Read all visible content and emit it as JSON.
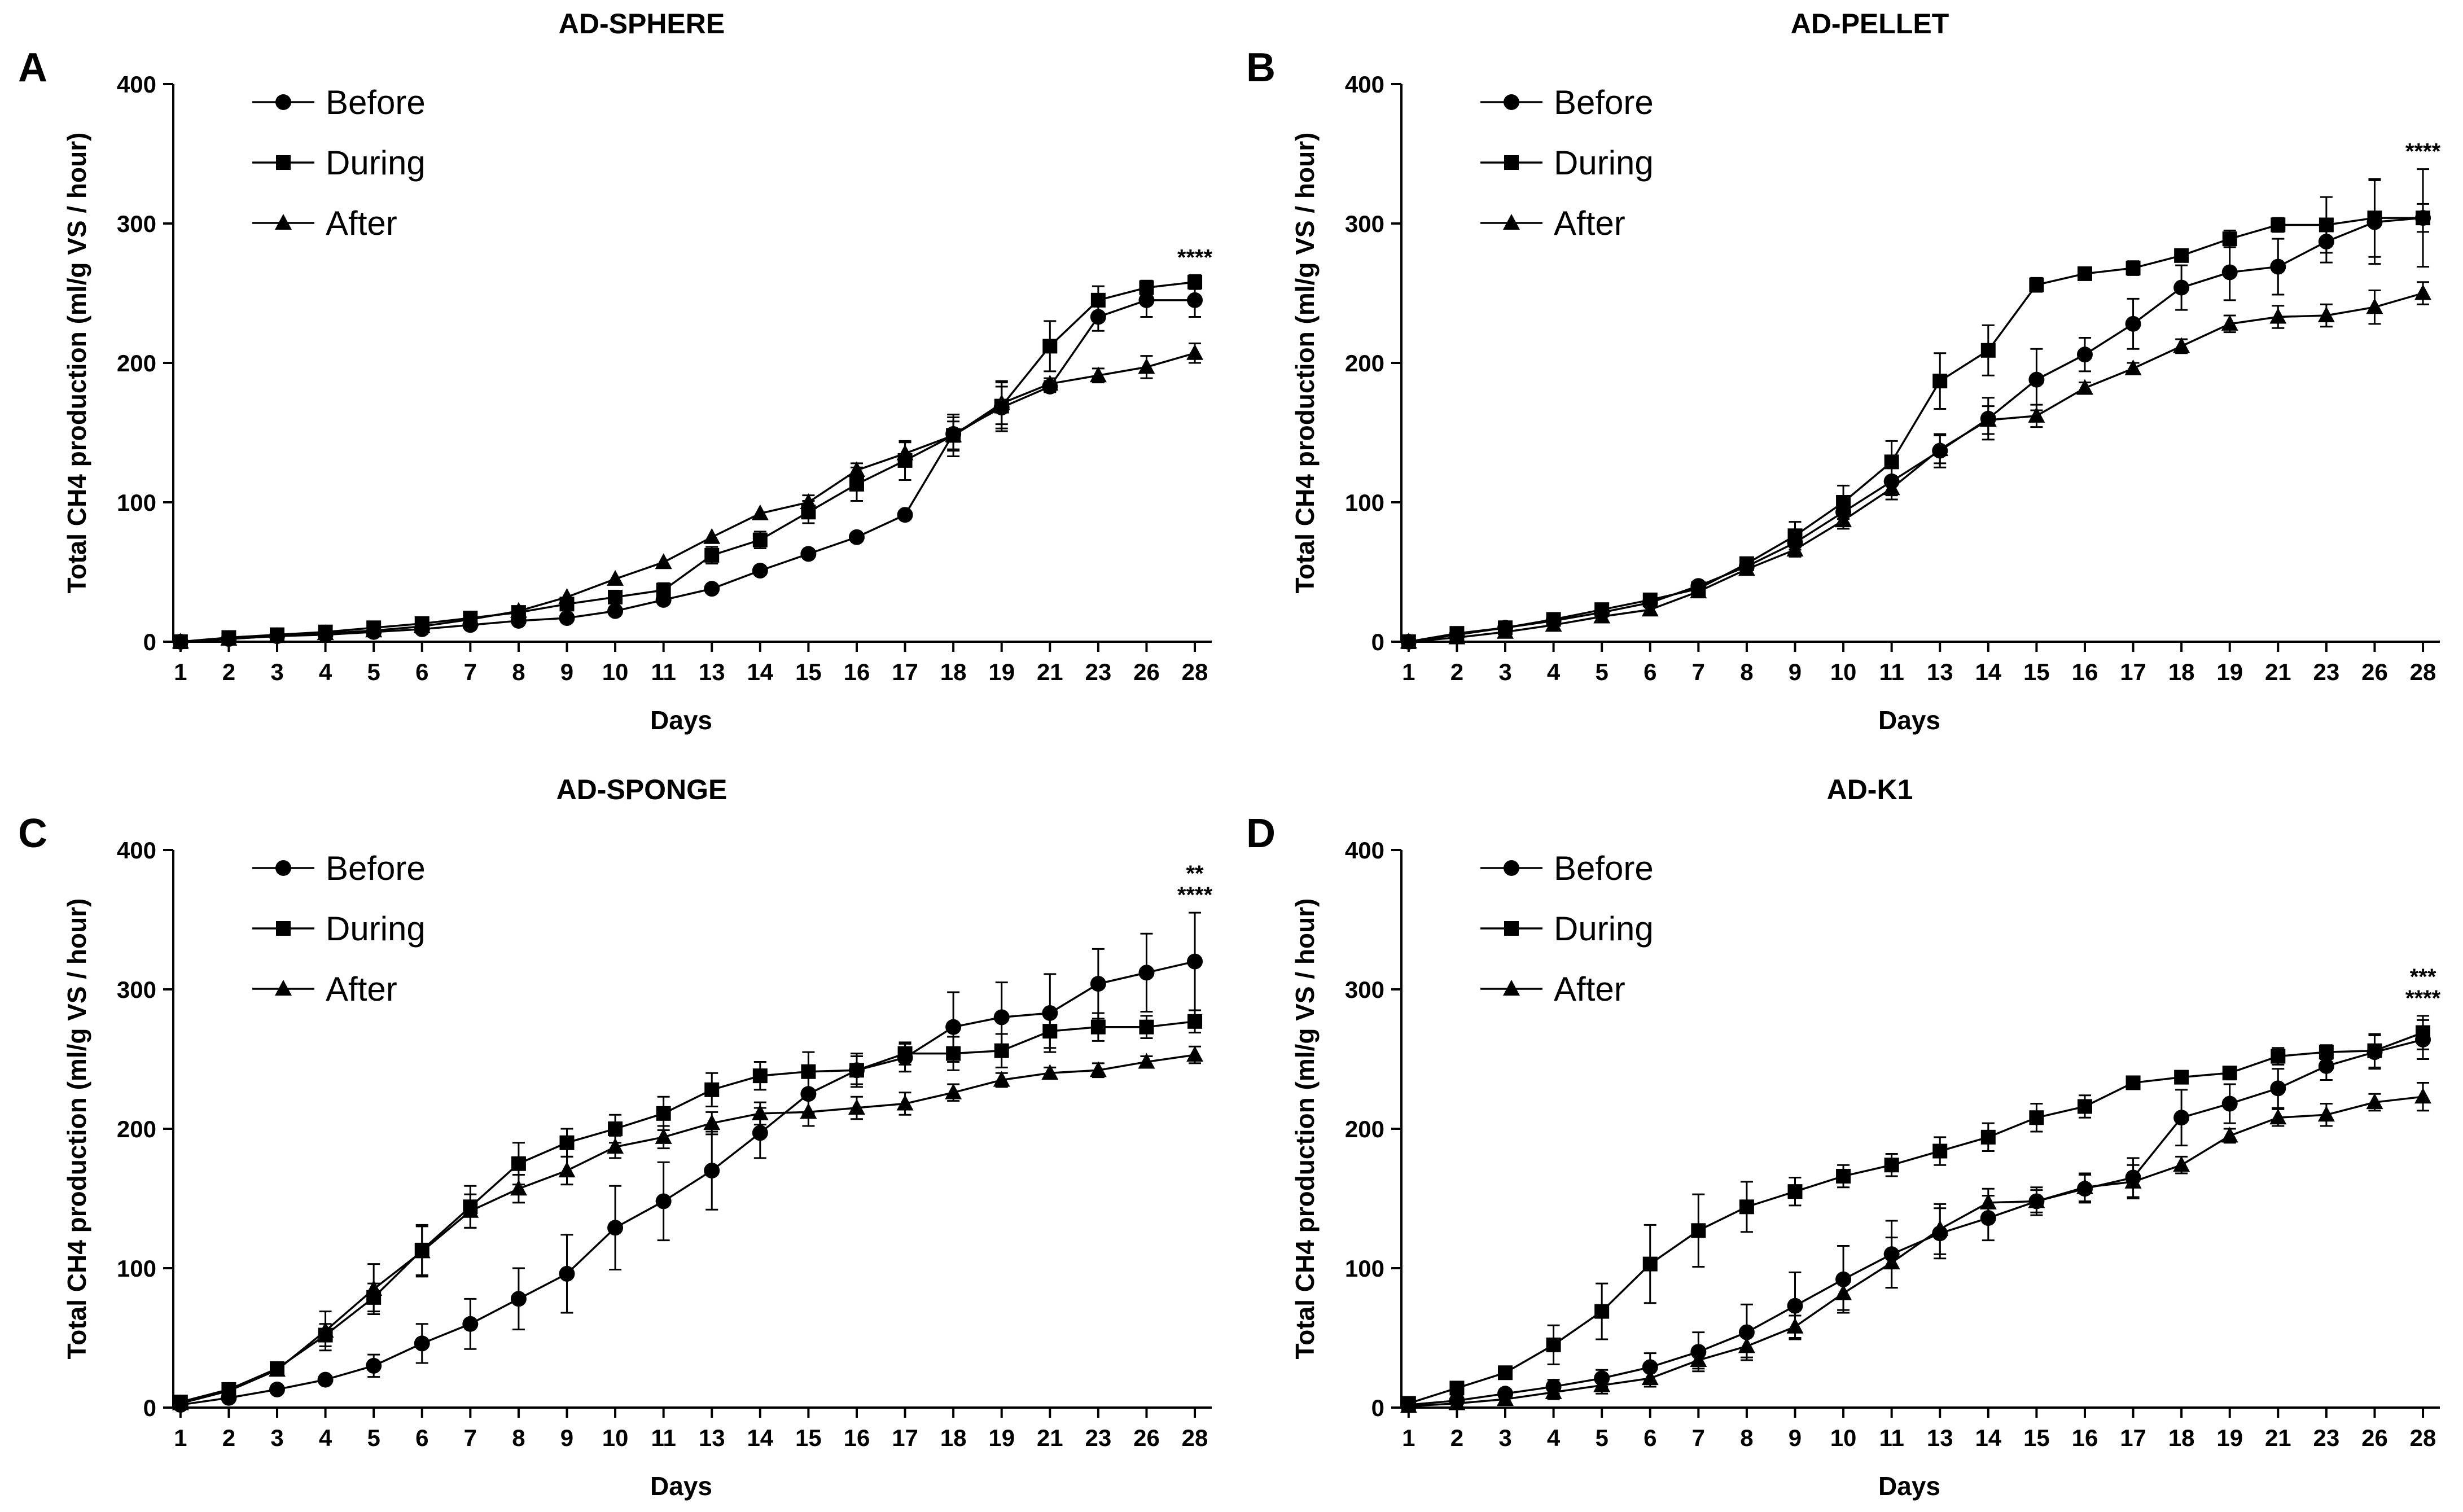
{
  "chart_data": [
    {
      "type": "line",
      "panel": "A",
      "title": "AD-SPHERE",
      "xlabel": "Days",
      "ylabel": "Total CH4 production (ml/g VS / hour)",
      "categories": [
        "1",
        "2",
        "3",
        "4",
        "5",
        "6",
        "7",
        "8",
        "9",
        "10",
        "11",
        "13",
        "14",
        "15",
        "16",
        "17",
        "18",
        "19",
        "21",
        "23",
        "26",
        "28"
      ],
      "ylim": [
        0,
        400
      ],
      "yticks": [
        0,
        100,
        200,
        300,
        400
      ],
      "legend_position": "top-left",
      "series": [
        {
          "name": "Before",
          "marker": "circle",
          "values": [
            0,
            2,
            4,
            5,
            7,
            9,
            12,
            15,
            17,
            22,
            30,
            38,
            51,
            63,
            75,
            91,
            149,
            168,
            183,
            233,
            245,
            245
          ],
          "errors": [
            0,
            0,
            0,
            0,
            0,
            0,
            0,
            0,
            0,
            0,
            0,
            0,
            0,
            0,
            0,
            0,
            12,
            15,
            4,
            10,
            12,
            12
          ]
        },
        {
          "name": "During",
          "marker": "square",
          "values": [
            0,
            3,
            5,
            7,
            10,
            13,
            17,
            21,
            27,
            32,
            37,
            62,
            73,
            93,
            113,
            130,
            148,
            169,
            212,
            245,
            254,
            258
          ],
          "errors": [
            0,
            0,
            0,
            0,
            0,
            0,
            0,
            0,
            0,
            0,
            5,
            6,
            6,
            8,
            12,
            14,
            15,
            18,
            18,
            10,
            5,
            5
          ]
        },
        {
          "name": "After",
          "marker": "triangle",
          "values": [
            0,
            2,
            4,
            6,
            8,
            11,
            16,
            22,
            32,
            45,
            57,
            75,
            92,
            100,
            123,
            135,
            148,
            171,
            185,
            191,
            197,
            207
          ],
          "errors": [
            0,
            0,
            0,
            0,
            0,
            0,
            0,
            0,
            0,
            0,
            0,
            0,
            0,
            5,
            5,
            8,
            10,
            15,
            4,
            5,
            8,
            7
          ]
        }
      ],
      "significance": [
        "****"
      ]
    },
    {
      "type": "line",
      "panel": "B",
      "title": "AD-PELLET",
      "xlabel": "Days",
      "ylabel": "Total CH4 production (ml/g VS / hour)",
      "categories": [
        "1",
        "2",
        "3",
        "4",
        "5",
        "6",
        "7",
        "8",
        "9",
        "10",
        "11",
        "13",
        "14",
        "15",
        "16",
        "17",
        "18",
        "19",
        "21",
        "23",
        "26",
        "28"
      ],
      "ylim": [
        0,
        400
      ],
      "yticks": [
        0,
        100,
        200,
        300,
        400
      ],
      "legend_position": "top-left",
      "series": [
        {
          "name": "Before",
          "marker": "circle",
          "values": [
            0,
            5,
            10,
            15,
            21,
            28,
            40,
            54,
            71,
            93,
            115,
            137,
            160,
            188,
            206,
            228,
            254,
            265,
            269,
            287,
            301,
            304
          ],
          "errors": [
            0,
            0,
            0,
            0,
            0,
            0,
            0,
            0,
            0,
            8,
            10,
            12,
            15,
            22,
            12,
            18,
            16,
            20,
            20,
            15,
            30,
            35
          ]
        },
        {
          "name": "During",
          "marker": "square",
          "values": [
            0,
            6,
            10,
            16,
            23,
            30,
            38,
            56,
            76,
            100,
            129,
            187,
            209,
            256,
            264,
            268,
            277,
            289,
            299,
            299,
            304,
            304
          ],
          "errors": [
            0,
            0,
            0,
            0,
            0,
            0,
            0,
            0,
            10,
            12,
            15,
            20,
            18,
            5,
            4,
            5,
            4,
            6,
            5,
            20,
            28,
            10
          ]
        },
        {
          "name": "After",
          "marker": "triangle",
          "values": [
            0,
            3,
            7,
            12,
            18,
            23,
            36,
            52,
            66,
            87,
            110,
            138,
            159,
            162,
            182,
            196,
            212,
            228,
            233,
            234,
            240,
            250
          ],
          "errors": [
            0,
            0,
            0,
            0,
            0,
            0,
            0,
            0,
            5,
            6,
            8,
            10,
            10,
            8,
            4,
            4,
            5,
            6,
            8,
            8,
            12,
            8
          ]
        }
      ],
      "significance": [
        "****"
      ]
    },
    {
      "type": "line",
      "panel": "C",
      "title": "AD-SPONGE",
      "xlabel": "Days",
      "ylabel": "Total CH4 production (ml/g VS / hour)",
      "categories": [
        "1",
        "2",
        "3",
        "4",
        "5",
        "6",
        "7",
        "8",
        "9",
        "10",
        "11",
        "13",
        "14",
        "15",
        "16",
        "17",
        "18",
        "19",
        "21",
        "23",
        "26",
        "28"
      ],
      "ylim": [
        0,
        400
      ],
      "yticks": [
        0,
        100,
        200,
        300,
        400
      ],
      "legend_position": "top-left",
      "series": [
        {
          "name": "Before",
          "marker": "circle",
          "values": [
            2,
            7,
            13,
            20,
            30,
            46,
            60,
            78,
            96,
            129,
            148,
            170,
            197,
            225,
            242,
            251,
            273,
            280,
            283,
            304,
            312,
            320
          ],
          "errors": [
            0,
            0,
            0,
            0,
            8,
            14,
            18,
            22,
            28,
            30,
            28,
            28,
            18,
            14,
            10,
            10,
            25,
            25,
            28,
            25,
            28,
            35
          ]
        },
        {
          "name": "During",
          "marker": "square",
          "values": [
            4,
            13,
            28,
            52,
            79,
            113,
            144,
            175,
            190,
            200,
            211,
            228,
            238,
            241,
            242,
            254,
            254,
            256,
            270,
            273,
            273,
            277
          ],
          "errors": [
            0,
            0,
            4,
            8,
            10,
            18,
            15,
            15,
            10,
            10,
            12,
            12,
            10,
            14,
            12,
            8,
            12,
            12,
            12,
            10,
            8,
            8
          ]
        },
        {
          "name": "After",
          "marker": "triangle",
          "values": [
            3,
            12,
            27,
            55,
            85,
            112,
            141,
            157,
            170,
            187,
            194,
            204,
            211,
            212,
            215,
            218,
            226,
            235,
            240,
            242,
            248,
            253
          ],
          "errors": [
            0,
            0,
            4,
            14,
            18,
            18,
            12,
            10,
            10,
            8,
            8,
            8,
            8,
            10,
            8,
            8,
            6,
            5,
            4,
            5,
            4,
            6
          ]
        }
      ],
      "significance": [
        "**",
        "****"
      ]
    },
    {
      "type": "line",
      "panel": "D",
      "title": "AD-K1",
      "xlabel": "Days",
      "ylabel": "Total CH4 production (ml/g VS / hour)",
      "categories": [
        "1",
        "2",
        "3",
        "4",
        "5",
        "6",
        "7",
        "8",
        "9",
        "10",
        "11",
        "13",
        "14",
        "15",
        "16",
        "17",
        "18",
        "19",
        "21",
        "23",
        "26",
        "28"
      ],
      "ylim": [
        0,
        400
      ],
      "yticks": [
        0,
        100,
        200,
        300,
        400
      ],
      "legend_position": "top-left",
      "series": [
        {
          "name": "Before",
          "marker": "circle",
          "values": [
            2,
            5,
            10,
            15,
            21,
            29,
            40,
            54,
            73,
            92,
            110,
            125,
            136,
            148,
            157,
            165,
            208,
            218,
            229,
            245,
            255,
            264
          ],
          "errors": [
            0,
            0,
            3,
            5,
            6,
            10,
            14,
            20,
            24,
            24,
            24,
            18,
            16,
            10,
            10,
            14,
            20,
            14,
            14,
            10,
            12,
            14
          ]
        },
        {
          "name": "During",
          "marker": "square",
          "values": [
            3,
            14,
            25,
            45,
            69,
            103,
            127,
            144,
            155,
            166,
            174,
            184,
            194,
            208,
            216,
            233,
            237,
            240,
            252,
            255,
            256,
            269
          ],
          "errors": [
            0,
            3,
            4,
            14,
            20,
            28,
            26,
            18,
            10,
            8,
            8,
            10,
            10,
            10,
            8,
            4,
            3,
            3,
            6,
            5,
            12,
            12
          ]
        },
        {
          "name": "After",
          "marker": "triangle",
          "values": [
            1,
            3,
            6,
            11,
            16,
            21,
            34,
            44,
            58,
            82,
            104,
            128,
            147,
            148,
            158,
            162,
            174,
            195,
            208,
            210,
            219,
            223
          ],
          "errors": [
            0,
            0,
            2,
            5,
            6,
            6,
            6,
            8,
            8,
            12,
            18,
            18,
            10,
            8,
            10,
            12,
            6,
            5,
            6,
            8,
            6,
            10
          ]
        }
      ],
      "significance": [
        "***",
        "****"
      ]
    }
  ]
}
